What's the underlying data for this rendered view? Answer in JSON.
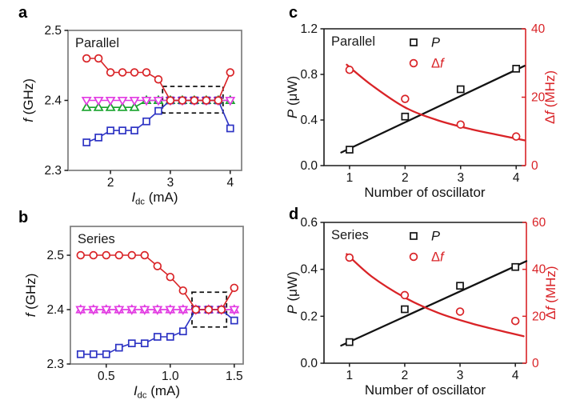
{
  "figure": {
    "background": "#ffffff"
  },
  "colors": {
    "red": "#d92327",
    "blue": "#2e34c4",
    "magenta": "#e23ce2",
    "green": "#17a32b",
    "black": "#131313",
    "box_gray": "#7d7d7d",
    "dark": "#1a1a1a"
  },
  "chart_data": [
    {
      "id": "a",
      "letter": "a",
      "inside_label": "Parallel",
      "type": "line",
      "x_axis": {
        "label_parts": [
          {
            "t": "I",
            "style": "italic"
          },
          {
            "t": "dc",
            "style": "sub"
          },
          {
            "t": " (mA)"
          }
        ],
        "lim": [
          1.29,
          4.19
        ],
        "ticks": [
          2,
          3,
          4
        ],
        "tick_labels": [
          "2",
          "3",
          "4"
        ]
      },
      "y_axis": {
        "label_parts": [
          {
            "t": "f",
            "style": "italic"
          },
          {
            "t": " (GHz)"
          }
        ],
        "lim": [
          2.3,
          2.5
        ],
        "ticks": [
          2.3,
          2.4,
          2.5
        ],
        "tick_labels": [
          "2.3",
          "2.4",
          "2.5"
        ]
      },
      "x": [
        1.6,
        1.8,
        2.0,
        2.2,
        2.4,
        2.6,
        2.8,
        3.0,
        3.2,
        3.4,
        3.6,
        3.8,
        4.0
      ],
      "series": [
        {
          "name": "oscillator-green-triangle-up",
          "color": "green",
          "marker": "triangle-up",
          "y": [
            2.39,
            2.39,
            2.39,
            2.39,
            2.39,
            2.4,
            2.4,
            2.4,
            2.4,
            2.4,
            2.4,
            2.4,
            2.4
          ]
        },
        {
          "name": "oscillator-magenta-triangle-down",
          "color": "magenta",
          "marker": "triangle-down",
          "y": [
            2.4,
            2.4,
            2.4,
            2.4,
            2.4,
            2.4,
            2.4,
            2.4,
            2.4,
            2.4,
            2.4,
            2.4,
            2.4
          ]
        },
        {
          "name": "oscillator-blue-square",
          "color": "blue",
          "marker": "square",
          "y": [
            2.34,
            2.347,
            2.357,
            2.357,
            2.357,
            2.37,
            2.385,
            2.4,
            2.4,
            2.4,
            2.4,
            2.4,
            2.36
          ]
        },
        {
          "name": "oscillator-red-circle",
          "color": "red",
          "marker": "circle",
          "y": [
            2.46,
            2.46,
            2.44,
            2.44,
            2.44,
            2.44,
            2.43,
            2.4,
            2.4,
            2.4,
            2.4,
            2.4,
            2.44
          ]
        }
      ],
      "sync_box": {
        "x": [
          2.87,
          3.88
        ],
        "y": [
          2.382,
          2.42
        ]
      }
    },
    {
      "id": "b",
      "letter": "b",
      "inside_label": "Series",
      "type": "line",
      "x_axis": {
        "label_parts": [
          {
            "t": "I",
            "style": "italic"
          },
          {
            "t": "dc",
            "style": "sub"
          },
          {
            "t": " (mA)"
          }
        ],
        "lim": [
          0.22,
          1.57
        ],
        "ticks": [
          0.5,
          1.0,
          1.5
        ],
        "tick_labels": [
          "0.5",
          "1.0",
          "1.5"
        ]
      },
      "y_axis": {
        "label_parts": [
          {
            "t": "f",
            "style": "italic"
          },
          {
            "t": " (GHz)"
          }
        ],
        "lim": [
          2.3,
          2.553
        ],
        "ticks": [
          2.3,
          2.4,
          2.5
        ],
        "tick_labels": [
          "2.3",
          "2.4",
          "2.5"
        ]
      },
      "x": [
        0.3,
        0.4,
        0.5,
        0.6,
        0.7,
        0.8,
        0.9,
        1.0,
        1.1,
        1.2,
        1.3,
        1.4,
        1.5
      ],
      "series": [
        {
          "name": "oscillator-magenta-triangle-up",
          "color": "magenta",
          "marker": "triangle-up",
          "y": [
            2.4,
            2.4,
            2.4,
            2.4,
            2.4,
            2.4,
            2.4,
            2.4,
            2.4,
            2.4,
            2.4,
            2.4,
            2.4
          ]
        },
        {
          "name": "oscillator-magenta-triangle-down",
          "color": "magenta",
          "marker": "triangle-down",
          "y": [
            2.4,
            2.4,
            2.4,
            2.4,
            2.4,
            2.4,
            2.4,
            2.4,
            2.4,
            2.4,
            2.4,
            2.4,
            2.4
          ]
        },
        {
          "name": "oscillator-blue-square",
          "color": "blue",
          "marker": "square",
          "y": [
            2.318,
            2.318,
            2.318,
            2.33,
            2.338,
            2.338,
            2.35,
            2.35,
            2.36,
            2.4,
            2.4,
            2.4,
            2.38
          ]
        },
        {
          "name": "oscillator-red-circle",
          "color": "red",
          "marker": "circle",
          "y": [
            2.5,
            2.5,
            2.5,
            2.5,
            2.5,
            2.5,
            2.48,
            2.46,
            2.435,
            2.4,
            2.4,
            2.4,
            2.44
          ]
        }
      ],
      "sync_box": {
        "x": [
          1.17,
          1.44
        ],
        "y": [
          2.368,
          2.432
        ]
      }
    },
    {
      "id": "c",
      "letter": "c",
      "inside_label": "Parallel",
      "type": "scatter",
      "x_axis": {
        "label_parts": [
          {
            "t": "Number of oscillator"
          }
        ],
        "lim": [
          0.54,
          4.17
        ],
        "ticks": [
          1,
          2,
          3,
          4
        ],
        "tick_labels": [
          "1",
          "2",
          "3",
          "4"
        ]
      },
      "y_axis": {
        "label_parts": [
          {
            "t": "P",
            "style": "italic"
          },
          {
            "t": " (μW)"
          }
        ],
        "lim": [
          0,
          1.2
        ],
        "ticks": [
          0,
          0.4,
          0.8,
          1.2
        ],
        "tick_labels": [
          "0.0",
          "0.4",
          "0.8",
          "1.2"
        ]
      },
      "y2_axis": {
        "label_parts": [
          {
            "t": "Δ"
          },
          {
            "t": "f",
            "style": "italic"
          },
          {
            "t": " (MHz)"
          }
        ],
        "lim": [
          0,
          40
        ],
        "ticks": [
          0,
          20,
          40
        ],
        "tick_labels": [
          "0",
          "20",
          "40"
        ]
      },
      "x": [
        1,
        2,
        3,
        4
      ],
      "series": [
        {
          "name": "power",
          "color": "black",
          "marker": "square",
          "line": false,
          "y": [
            0.14,
            0.43,
            0.67,
            0.85
          ]
        },
        {
          "name": "linewidth",
          "color": "red",
          "marker": "circle",
          "line": false,
          "axis": "right",
          "y": [
            28,
            19.5,
            12,
            8.5
          ]
        }
      ],
      "fits": [
        {
          "name": "power-fit",
          "color": "black",
          "points": [
            [
              0.85,
              0.115
            ],
            [
              4.15,
              0.875
            ]
          ]
        },
        {
          "name": "linewidth-fit",
          "color": "red",
          "axis": "right",
          "points": [
            [
              0.95,
              29.5
            ],
            [
              1.4,
              23.5
            ],
            [
              2.0,
              17.0
            ],
            [
              2.6,
              13.2
            ],
            [
              3.2,
              10.6
            ],
            [
              3.7,
              8.9
            ],
            [
              4.15,
              7.4
            ]
          ]
        }
      ],
      "legend": [
        {
          "marker": "square",
          "color": "black",
          "label_parts": [
            {
              "t": "P",
              "style": "italic"
            }
          ]
        },
        {
          "marker": "circle",
          "color": "red",
          "label_parts": [
            {
              "t": "Δ"
            },
            {
              "t": "f",
              "style": "italic"
            }
          ]
        }
      ]
    },
    {
      "id": "d",
      "letter": "d",
      "inside_label": "Series",
      "type": "scatter",
      "x_axis": {
        "label_parts": [
          {
            "t": "Number of oscillator"
          }
        ],
        "lim": [
          0.54,
          4.2
        ],
        "ticks": [
          1,
          2,
          3,
          4
        ],
        "tick_labels": [
          "1",
          "2",
          "3",
          "4"
        ]
      },
      "y_axis": {
        "label_parts": [
          {
            "t": "P",
            "style": "italic"
          },
          {
            "t": " (μW)"
          }
        ],
        "lim": [
          0,
          0.6
        ],
        "ticks": [
          0,
          0.2,
          0.4,
          0.6
        ],
        "tick_labels": [
          "0.0",
          "0.2",
          "0.4",
          "0.6"
        ]
      },
      "y2_axis": {
        "label_parts": [
          {
            "t": "Δ"
          },
          {
            "t": "f",
            "style": "italic"
          },
          {
            "t": " (MHz)"
          }
        ],
        "lim": [
          0,
          60
        ],
        "ticks": [
          0,
          20,
          40,
          60
        ],
        "tick_labels": [
          "0",
          "20",
          "40",
          "60"
        ]
      },
      "x": [
        1,
        2,
        3,
        4
      ],
      "series": [
        {
          "name": "power",
          "color": "black",
          "marker": "square",
          "line": false,
          "y": [
            0.09,
            0.23,
            0.33,
            0.41
          ]
        },
        {
          "name": "linewidth",
          "color": "red",
          "marker": "circle",
          "line": false,
          "axis": "right",
          "y": [
            45,
            29,
            22,
            18
          ]
        }
      ],
      "fits": [
        {
          "name": "power-fit",
          "color": "black",
          "points": [
            [
              0.85,
              0.075
            ],
            [
              4.2,
              0.435
            ]
          ]
        },
        {
          "name": "linewidth-fit",
          "color": "red",
          "axis": "right",
          "points": [
            [
              0.95,
              46.5
            ],
            [
              1.4,
              37
            ],
            [
              2.0,
              28
            ],
            [
              2.6,
              21.5
            ],
            [
              3.2,
              17
            ],
            [
              3.7,
              14
            ],
            [
              4.15,
              11.5
            ]
          ]
        }
      ],
      "legend": [
        {
          "marker": "square",
          "color": "black",
          "label_parts": [
            {
              "t": "P",
              "style": "italic"
            }
          ]
        },
        {
          "marker": "circle",
          "color": "red",
          "label_parts": [
            {
              "t": "Δ"
            },
            {
              "t": "f",
              "style": "italic"
            }
          ]
        }
      ]
    }
  ]
}
